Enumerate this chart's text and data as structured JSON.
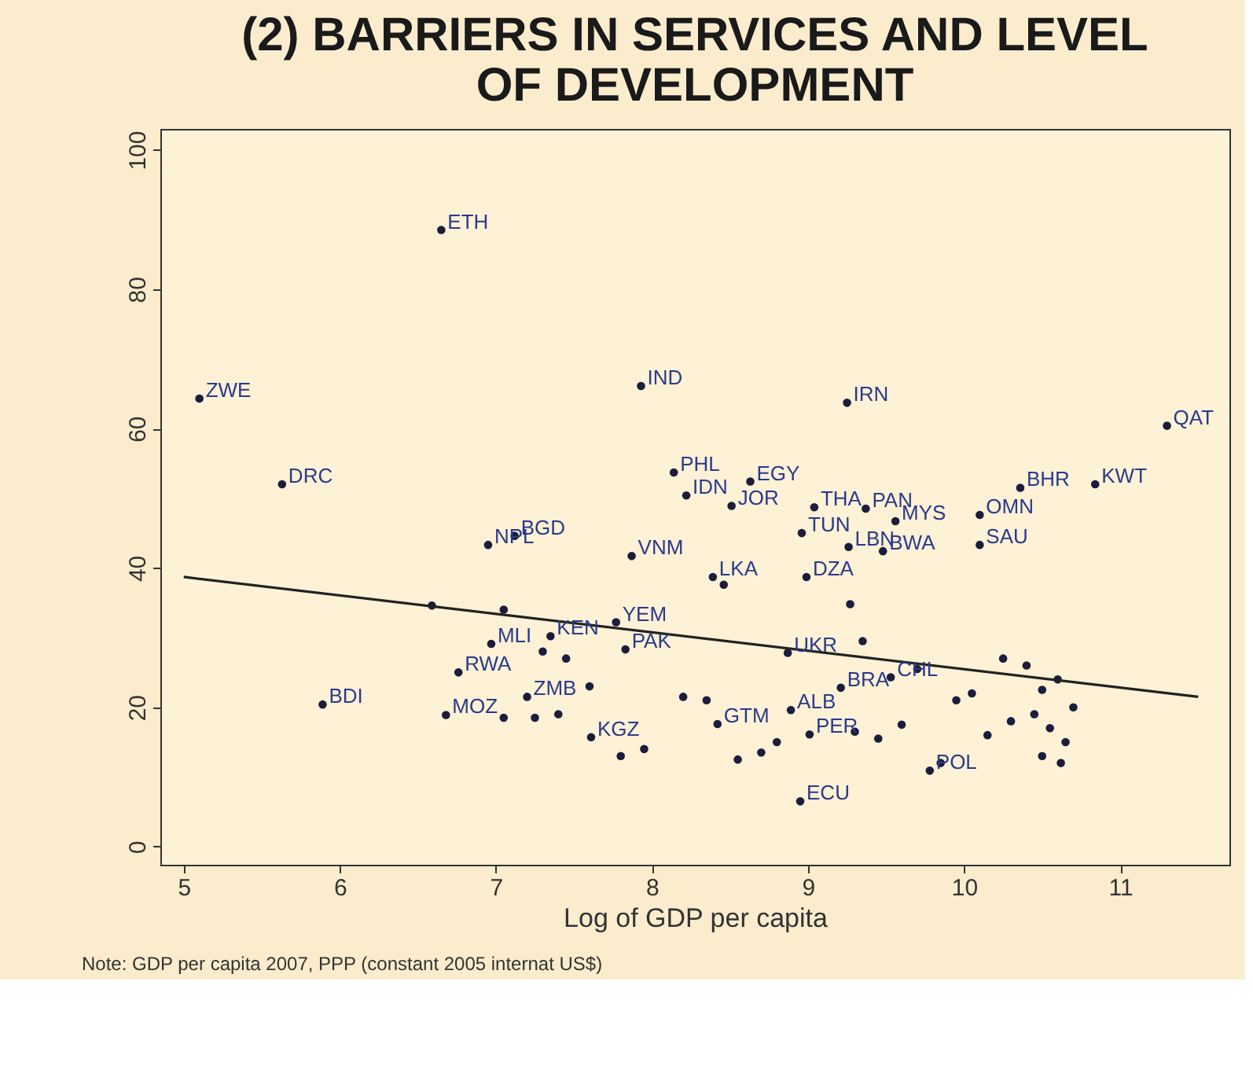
{
  "chart_data": {
    "type": "scatter",
    "title": [
      "(2) BARRIERS IN SERVICES AND LEVEL",
      "OF DEVELOPMENT"
    ],
    "xlabel": "Log of GDP per capita",
    "xlim": [
      4.85,
      11.7
    ],
    "xticks": [
      5,
      6,
      7,
      8,
      9,
      10,
      11
    ],
    "ylim": [
      -2.6,
      103
    ],
    "yticks": [
      0,
      20,
      40,
      60,
      80,
      100
    ],
    "grid": false,
    "marker": "circle",
    "series": [
      {
        "color": "#1c1c3c",
        "x": [
          6.65,
          5.1,
          7.93,
          5.63,
          9.25,
          11.3,
          8.14,
          8.63,
          8.22,
          8.51,
          9.04,
          9.37,
          9.56,
          10.1,
          10.36,
          10.84,
          8.96,
          9.26,
          9.48,
          10.1,
          6.95,
          7.12,
          7.87,
          8.39,
          8.99,
          7.77,
          6.97,
          7.35,
          7.83,
          6.76,
          7.2,
          5.89,
          6.68,
          7.61,
          8.95,
          8.87,
          9.21,
          9.53,
          8.89,
          9.01,
          9.78,
          8.42,
          8.46,
          9.27,
          6.59,
          7.05,
          7.3,
          7.45,
          7.6,
          7.4,
          7.95,
          8.2,
          8.35,
          8.55,
          8.7,
          8.8,
          7.05,
          7.25,
          7.8,
          9.3,
          9.45,
          9.6,
          9.85,
          10.05,
          10.25,
          10.4,
          10.5,
          10.55,
          10.65,
          10.7,
          10.45,
          10.6,
          10.3,
          10.15,
          9.95,
          10.5,
          10.62,
          9.35,
          9.7
        ],
        "values": [
          88.5,
          64.3,
          66.1,
          52.0,
          63.7,
          60.4,
          53.7,
          52.4,
          50.4,
          48.9,
          48.7,
          48.5,
          46.7,
          47.6,
          51.5,
          52.0,
          45.0,
          43.0,
          42.4,
          43.3,
          43.3,
          44.6,
          41.7,
          38.7,
          38.7,
          32.2,
          29.1,
          30.2,
          28.3,
          25.0,
          21.5,
          20.4,
          18.9,
          15.7,
          6.5,
          27.8,
          22.8,
          24.3,
          19.6,
          16.1,
          10.9,
          17.6,
          37.6,
          34.8,
          34.6,
          34.0,
          28.0,
          27.0,
          23.0,
          19.0,
          14.0,
          21.5,
          21.0,
          12.5,
          13.5,
          15.0,
          18.5,
          18.5,
          13.0,
          16.5,
          15.5,
          17.5,
          12.0,
          22.0,
          27.0,
          26.0,
          22.5,
          17.0,
          15.0,
          20.0,
          19.0,
          24.0,
          18.0,
          16.0,
          21.0,
          13.0,
          12.0,
          29.5,
          25.5
        ]
      },
      {
        "type": "line",
        "marker": "none",
        "color": "#222222",
        "x": [
          5,
          11.5
        ],
        "values": [
          38.7,
          21.5
        ]
      }
    ],
    "annotations": [
      {
        "text": "ETH",
        "x": 6.65,
        "y": 88.5
      },
      {
        "text": "ZWE",
        "x": 5.1,
        "y": 64.3
      },
      {
        "text": "IND",
        "x": 7.93,
        "y": 66.1
      },
      {
        "text": "DRC",
        "x": 5.63,
        "y": 52.0
      },
      {
        "text": "IRN",
        "x": 9.25,
        "y": 63.7
      },
      {
        "text": "QAT",
        "x": 11.3,
        "y": 60.4
      },
      {
        "text": "PHL",
        "x": 8.14,
        "y": 53.7
      },
      {
        "text": "EGY",
        "x": 8.63,
        "y": 52.4
      },
      {
        "text": "IDN",
        "x": 8.22,
        "y": 50.4
      },
      {
        "text": "JOR",
        "x": 8.51,
        "y": 48.9
      },
      {
        "text": "THA",
        "x": 9.04,
        "y": 48.7
      },
      {
        "text": "PAN",
        "x": 9.37,
        "y": 48.5
      },
      {
        "text": "MYS",
        "x": 9.56,
        "y": 46.7
      },
      {
        "text": "OMN",
        "x": 10.1,
        "y": 47.6
      },
      {
        "text": "BHR",
        "x": 10.36,
        "y": 51.5
      },
      {
        "text": "KWT",
        "x": 10.84,
        "y": 52.0
      },
      {
        "text": "TUN",
        "x": 8.96,
        "y": 45.0
      },
      {
        "text": "LBN",
        "x": 9.26,
        "y": 43.0
      },
      {
        "text": "BWA",
        "x": 9.48,
        "y": 42.4
      },
      {
        "text": "SAU",
        "x": 10.1,
        "y": 43.3
      },
      {
        "text": "NPL",
        "x": 6.95,
        "y": 43.3
      },
      {
        "text": "BGD",
        "x": 7.12,
        "y": 44.6
      },
      {
        "text": "VNM",
        "x": 7.87,
        "y": 41.7
      },
      {
        "text": "LKA",
        "x": 8.39,
        "y": 38.7
      },
      {
        "text": "DZA",
        "x": 8.99,
        "y": 38.7
      },
      {
        "text": "YEM",
        "x": 7.77,
        "y": 32.2
      },
      {
        "text": "MLI",
        "x": 6.97,
        "y": 29.1
      },
      {
        "text": "KEN",
        "x": 7.35,
        "y": 30.2
      },
      {
        "text": "PAK",
        "x": 7.83,
        "y": 28.3
      },
      {
        "text": "RWA",
        "x": 6.76,
        "y": 25.0
      },
      {
        "text": "ZMB",
        "x": 7.2,
        "y": 21.5
      },
      {
        "text": "BDI",
        "x": 5.89,
        "y": 20.4
      },
      {
        "text": "MOZ",
        "x": 6.68,
        "y": 18.9
      },
      {
        "text": "KGZ",
        "x": 7.61,
        "y": 15.7
      },
      {
        "text": "ECU",
        "x": 8.95,
        "y": 6.5
      },
      {
        "text": "UKR",
        "x": 8.87,
        "y": 27.8
      },
      {
        "text": "BRA",
        "x": 9.21,
        "y": 22.8
      },
      {
        "text": "CHL",
        "x": 9.53,
        "y": 24.3
      },
      {
        "text": "ALB",
        "x": 8.89,
        "y": 19.6
      },
      {
        "text": "PER",
        "x": 9.01,
        "y": 16.1
      },
      {
        "text": "POL",
        "x": 9.78,
        "y": 10.9
      },
      {
        "text": "GTM",
        "x": 8.42,
        "y": 17.6
      },
      "Note: GDP per capita 2007, PPP (constant 2005 internat US$)"
    ]
  }
}
